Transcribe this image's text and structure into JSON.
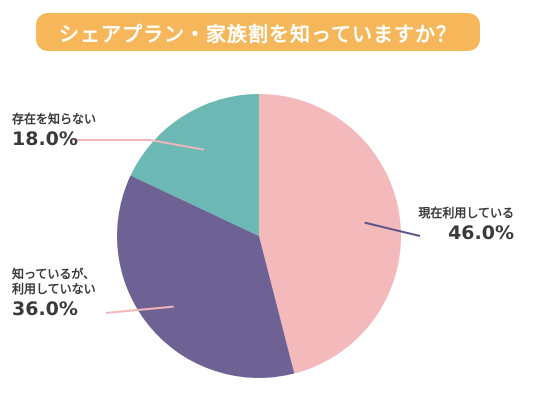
{
  "title": "シェアプラン・家族割を知っていますか？",
  "colors": {
    "title_bg": "#f6b75a",
    "line": "#555555"
  },
  "chart_data": {
    "type": "pie",
    "title": "シェアプラン・家族割を知っていますか？",
    "start_angle_deg": 0,
    "direction": "clockwise",
    "slices": [
      {
        "label": "現在利用している",
        "value": 46.0,
        "value_label": "46.0%",
        "color": "#f4b9bb",
        "leader_color": "#5b5488"
      },
      {
        "label": "知っているが、\n利用していない",
        "value": 36.0,
        "value_label": "36.0%",
        "color": "#6e6193",
        "leader_color": "#f2b5b8"
      },
      {
        "label": "存在を知らない",
        "value": 18.0,
        "value_label": "18.0%",
        "color": "#6cb8b4",
        "leader_color": "#f2b5b8"
      }
    ]
  }
}
